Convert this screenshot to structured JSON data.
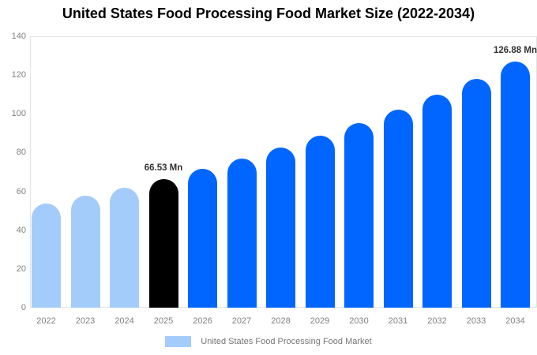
{
  "chart_data": {
    "type": "bar",
    "title": "United States Food Processing Food Market Size (2022-2034)",
    "categories": [
      "2022",
      "2023",
      "2024",
      "2025",
      "2026",
      "2027",
      "2028",
      "2029",
      "2030",
      "2031",
      "2032",
      "2033",
      "2034"
    ],
    "values": [
      53.64,
      57.63,
      61.92,
      66.53,
      71.48,
      76.79,
      82.5,
      88.64,
      95.23,
      102.31,
      109.92,
      118.09,
      126.88
    ],
    "unit": "Mn",
    "xlabel": "",
    "ylabel": "",
    "ylim": [
      0,
      140
    ],
    "yticks": [
      0,
      20,
      40,
      60,
      80,
      100,
      120,
      140
    ],
    "grid": false,
    "legend_position": "bottom",
    "bar_colors": [
      "#a4ccfb",
      "#a4ccfb",
      "#a4ccfb",
      "#000000",
      "#0066ff",
      "#0066ff",
      "#0066ff",
      "#0066ff",
      "#0066ff",
      "#0066ff",
      "#0066ff",
      "#0066ff",
      "#0066ff"
    ],
    "annotations": [
      {
        "index": 3,
        "text": "66.53 Mn"
      },
      {
        "index": 12,
        "text": "126.88 Mn"
      }
    ]
  },
  "legend": {
    "label": "United States Food Processing Food Market",
    "swatch_color": "#a4ccfb"
  },
  "colors": {
    "series_historical": "#a4ccfb",
    "series_forecast": "#0066ff",
    "series_highlight": "#000000",
    "axis_text": "#808080",
    "legend_text": "#757575",
    "annotation_text": "#333333",
    "plot_border": "#e4e4e4",
    "background": "#ffffff"
  }
}
